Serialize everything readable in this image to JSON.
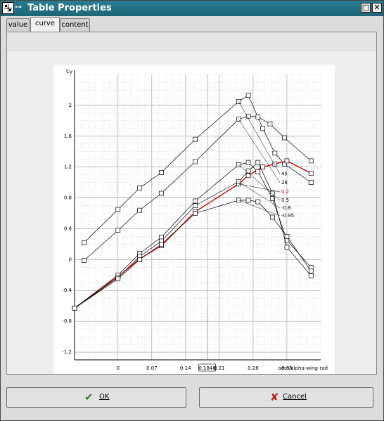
{
  "window": {
    "title": "Table Properties",
    "controls": [
      "□",
      "✕"
    ]
  },
  "tabs": [
    {
      "label": "value",
      "active": false
    },
    {
      "label": "curve",
      "active": true
    },
    {
      "label": "content",
      "active": false
    }
  ],
  "buttons": {
    "ok_label": "OK",
    "cancel_label": "Cancel"
  },
  "chart_data": {
    "type": "line",
    "ylabel": "Cy",
    "xlabel": "aero/alpha-wing-rad",
    "xlim": [
      -0.09,
      0.42
    ],
    "ylim": [
      -1.3,
      2.4
    ],
    "x_ticks": [
      "0",
      "0.07",
      "0.14",
      "0.1848",
      "0.21",
      "0.28",
      "0.35"
    ],
    "x_tick_values": [
      0,
      0.07,
      0.14,
      0.1848,
      0.21,
      0.28,
      0.35
    ],
    "y_ticks": [
      "2",
      "1.6",
      "1.2",
      "0.8",
      "0.4",
      "0",
      "-0.4",
      "-0.8",
      "-1.2"
    ],
    "y_tick_values": [
      2,
      1.6,
      1.2,
      0.8,
      0.4,
      0,
      -0.4,
      -0.8,
      -1.2
    ],
    "marker_x": 0.1848,
    "highlight_color": "#cc0000",
    "series": [
      {
        "name": "45",
        "x": [
          -0.07,
          0,
          0.045,
          0.09,
          0.16,
          0.25,
          0.27,
          0.3,
          0.325,
          0.345,
          0.4
        ],
        "y": [
          0.22,
          0.65,
          0.93,
          1.13,
          1.56,
          2.05,
          2.13,
          1.7,
          1.38,
          1.24,
          1.0
        ]
      },
      {
        "name": "28",
        "x": [
          -0.07,
          0,
          0.045,
          0.09,
          0.16,
          0.25,
          0.27,
          0.29,
          0.315,
          0.345,
          0.4
        ],
        "y": [
          -0.01,
          0.38,
          0.64,
          0.86,
          1.27,
          1.82,
          1.86,
          1.85,
          1.76,
          1.58,
          1.28
        ]
      },
      {
        "name": "0.2",
        "x": [
          -0.09,
          0,
          0.045,
          0.09,
          0.16,
          0.25,
          0.27,
          0.3,
          0.325,
          0.35,
          0.4
        ],
        "y": [
          -0.63,
          -0.22,
          0.01,
          0.18,
          0.62,
          0.98,
          1.09,
          1.2,
          1.24,
          1.28,
          1.12
        ]
      },
      {
        "name": "0.5",
        "x": [
          -0.09,
          0,
          0.045,
          0.09,
          0.16,
          0.25,
          0.27,
          0.29,
          0.32,
          0.35,
          0.4
        ],
        "y": [
          -0.63,
          -0.2,
          0.08,
          0.29,
          0.76,
          1.23,
          1.26,
          1.14,
          0.79,
          0.25,
          -0.1
        ]
      },
      {
        "name": "-0.8",
        "x": [
          -0.09,
          0,
          0.045,
          0.09,
          0.16,
          0.25,
          0.27,
          0.29,
          0.32,
          0.35,
          0.4
        ],
        "y": [
          -0.63,
          -0.23,
          0.04,
          0.24,
          0.7,
          1.01,
          1.15,
          1.26,
          0.86,
          0.16,
          -0.21
        ]
      },
      {
        "name": "-0.95",
        "x": [
          -0.09,
          0,
          0.045,
          0.09,
          0.16,
          0.25,
          0.27,
          0.29,
          0.32,
          0.35,
          0.4
        ],
        "y": [
          -0.63,
          -0.25,
          0.0,
          0.2,
          0.6,
          0.77,
          0.77,
          0.75,
          0.55,
          0.3,
          -0.15
        ]
      }
    ]
  }
}
